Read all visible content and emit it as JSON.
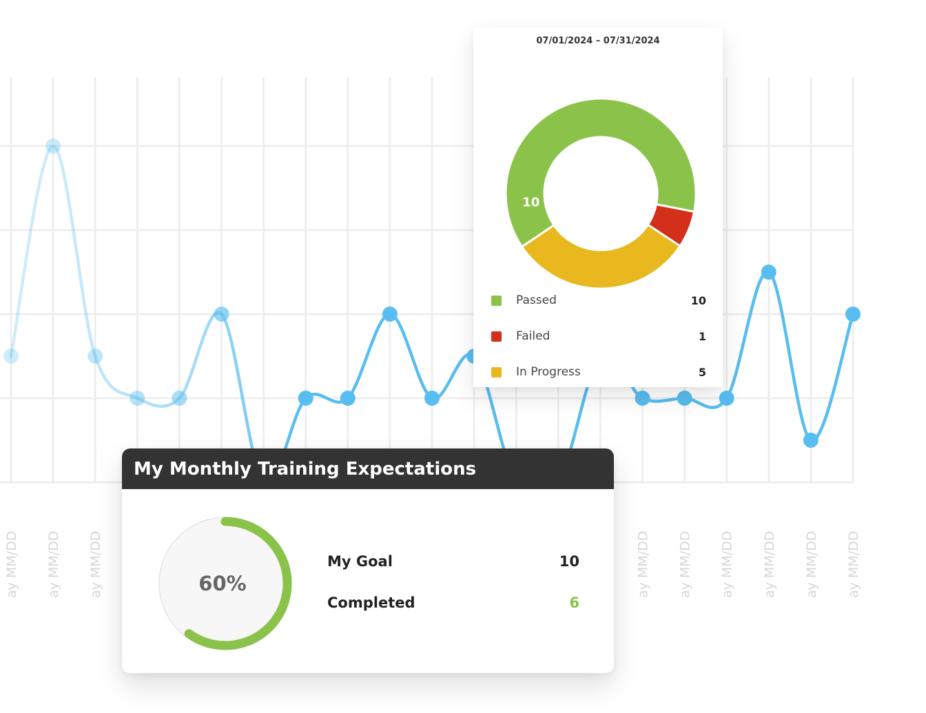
{
  "chart_data": [
    {
      "type": "line",
      "title": "",
      "xlabel": "",
      "ylabel": "",
      "x": [
        "ay MM/DD",
        "ay MM/DD",
        "ay MM/DD",
        "ay MM/DD",
        "ay MM/DD",
        "ay MM/DD",
        "ay MM/DD",
        "ay MM/DD",
        "ay MM/DD",
        "ay MM/DD",
        "ay MM/DD",
        "ay MM/DD",
        "ay MM/DD",
        "ay MM/DD",
        "ay MM/DD",
        "ay MM/DD",
        "ay MM/DD",
        "ay MM/DD",
        "ay MM/DD",
        "ay MM/DD",
        "ay MM/DD"
      ],
      "series": [
        {
          "values": [
            3,
            8,
            3,
            2,
            2,
            4,
            0,
            2,
            2,
            4,
            2,
            3,
            0,
            0,
            3,
            2,
            2,
            2,
            5,
            1,
            4
          ]
        }
      ],
      "ylim": [
        0,
        9
      ],
      "grid": true,
      "line_color": "#58bdf0"
    },
    {
      "type": "pie",
      "subtitle": "07/01/2024  – 07/31/2024",
      "categories": [
        "Passed",
        "Failed",
        "In Progress"
      ],
      "values": [
        10,
        1,
        5
      ],
      "colors": [
        "#8bc34a",
        "#d32f1a",
        "#e8b81e"
      ],
      "slice_labels": [
        "10",
        "",
        ""
      ],
      "legend": "bottom"
    }
  ],
  "training": {
    "title": "My Monthly Training Expectations",
    "progress_percent": 60,
    "progress_label": "60%",
    "progress_color": "#8bc34a",
    "goal_label": "My Goal",
    "goal_value": "10",
    "completed_label": "Completed",
    "completed_value": "6"
  }
}
